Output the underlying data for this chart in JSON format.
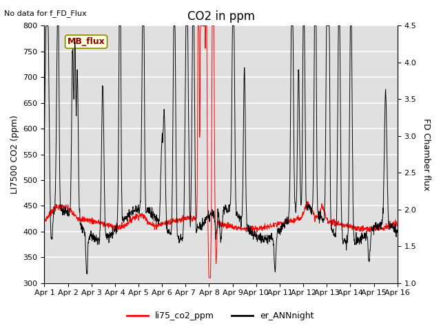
{
  "title": "CO2 in ppm",
  "top_left_text": "No data for f_FD_Flux",
  "ylabel_left": "LI7500 CO2 (ppm)",
  "ylabel_right": "FD Chamber flux",
  "ylim_left": [
    300,
    800
  ],
  "ylim_right": [
    1.0,
    4.5
  ],
  "yticks_left": [
    300,
    350,
    400,
    450,
    500,
    550,
    600,
    650,
    700,
    750,
    800
  ],
  "yticks_right": [
    1.0,
    1.5,
    2.0,
    2.5,
    3.0,
    3.5,
    4.0,
    4.5
  ],
  "xticklabels": [
    "Apr 1",
    "Apr 2",
    "Apr 3",
    "Apr 4",
    "Apr 5",
    "Apr 6",
    "Apr 7",
    "Apr 8",
    "Apr 9",
    "Apr 10",
    "Apr 11",
    "Apr 12",
    "Apr 13",
    "Apr 14",
    "Apr 15",
    "Apr 16"
  ],
  "legend_label1": "li75_co2_ppm",
  "legend_label2": "er_ANNnight",
  "legend_color1": "red",
  "legend_color2": "black",
  "mb_flux_label": "MB_flux",
  "background_color": "#e0e0e0",
  "grid_color": "white",
  "title_fontsize": 12,
  "label_fontsize": 9,
  "tick_fontsize": 8
}
